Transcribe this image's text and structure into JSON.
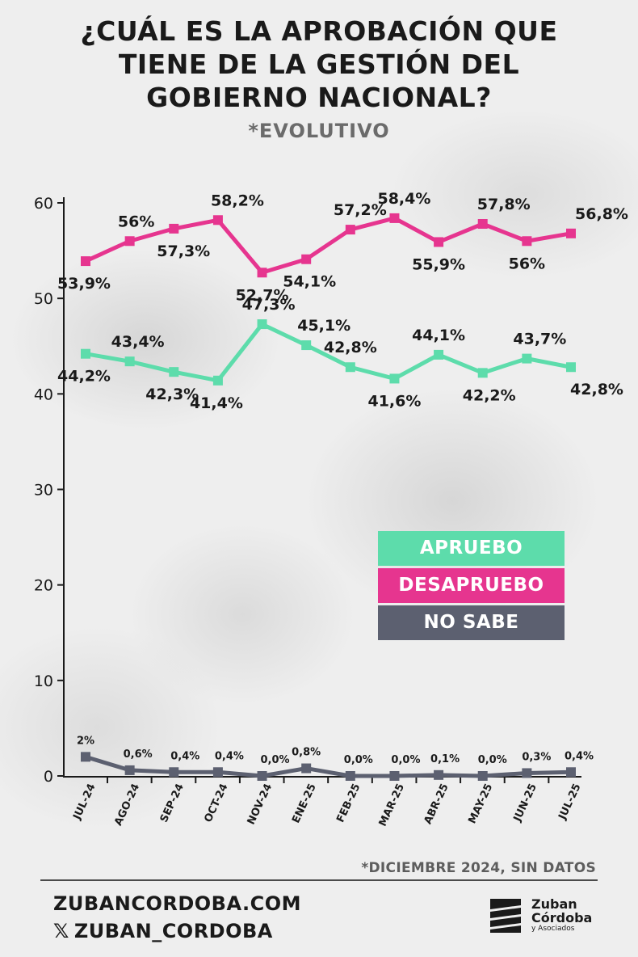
{
  "title_lines": [
    "¿CUÁL ES LA APROBACIÓN QUE",
    "TIENE DE LA GESTIÓN DEL",
    "GOBIERNO NACIONAL?"
  ],
  "subtitle": "*EVOLUTIVO",
  "colors": {
    "apruebo": "#5ddcab",
    "desapruebo": "#e6358f",
    "no_sabe": "#5c6070",
    "axis": "#1a1a1a"
  },
  "chart_data": {
    "type": "line",
    "x": [
      "JUL-24",
      "AGO-24",
      "SEP-24",
      "OCT-24",
      "NOV-24",
      "ENE-25",
      "FEB-25",
      "MAR-25",
      "ABR-25",
      "MAY-25",
      "JUN-25",
      "JUL-25"
    ],
    "ylim": [
      0,
      60
    ],
    "yticks": [
      0,
      10,
      20,
      30,
      40,
      50,
      60
    ],
    "grid": false,
    "legend_position": "right-middle",
    "series": [
      {
        "name": "APRUEBO",
        "key": "apruebo",
        "values": [
          44.2,
          43.4,
          42.3,
          41.4,
          47.3,
          45.1,
          42.8,
          41.6,
          44.1,
          42.2,
          43.7,
          42.8
        ],
        "labels": [
          "44,2%",
          "43,4%",
          "42,3%",
          "41,4%",
          "47,3%",
          "45,1%",
          "42,8%",
          "41,6%",
          "44,1%",
          "42,2%",
          "43,7%",
          "42,8%"
        ]
      },
      {
        "name": "DESAPRUEBO",
        "key": "desapruebo",
        "values": [
          53.9,
          56,
          57.3,
          58.2,
          52.7,
          54.1,
          57.2,
          58.4,
          55.9,
          57.8,
          56,
          56.8
        ],
        "labels": [
          "53,9%",
          "56%",
          "57,3%",
          "58,2%",
          "52,7%",
          "54,1%",
          "57,2%",
          "58,4%",
          "55,9%",
          "57,8%",
          "56%",
          "56,8%"
        ]
      },
      {
        "name": "NO SABE",
        "key": "no_sabe",
        "values": [
          2,
          0.6,
          0.4,
          0.4,
          0,
          0.8,
          0,
          0,
          0.1,
          0,
          0.3,
          0.4
        ],
        "labels": [
          "2%",
          "0,6%",
          "0,4%",
          "0,4%",
          "0,0%",
          "0,8%",
          "0,0%",
          "0,0%",
          "0,1%",
          "0,0%",
          "0,3%",
          "0,4%"
        ]
      }
    ]
  },
  "note": "*DICIEMBRE 2024, SIN DATOS",
  "footer": {
    "website": "ZUBANCORDOBA.COM",
    "social_icon": "x-logo-icon",
    "social_glyph": "𝕏",
    "social_handle": "ZUBAN_CORDOBA"
  },
  "logo": {
    "icon": "zuban-cordoba-stripes-logo",
    "line1": "Zuban",
    "line2": "Córdoba",
    "line3": "y Asociados"
  }
}
